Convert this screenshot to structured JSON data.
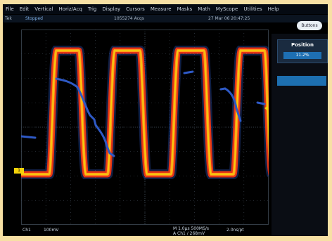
{
  "menu": [
    "File",
    "Edit",
    "Vertical",
    "Horiz/Acq",
    "Trig",
    "Display",
    "Cursors",
    "Measure",
    "Masks",
    "Math",
    "MyScope",
    "Utilities",
    "Help"
  ],
  "status": {
    "brand": "Tek",
    "state": "Stopped",
    "acqs": "1055274 Acqs",
    "datetime": "27 Mar 06 20:47:25"
  },
  "buttons_label": "Buttons",
  "side_panel": {
    "title": "Position",
    "value": "11.2%"
  },
  "channel": {
    "marker": "1",
    "label": "Ch1",
    "scale": "100mV"
  },
  "bottom": {
    "timebase": "M 1.0µs 500MS/s",
    "trigger": "A  Ch1  ∕  268mV",
    "zoom": "2.0ns/pt"
  },
  "colors": {
    "grid": "#3f4a56",
    "trace": "#f4d30a",
    "density": "#e63515",
    "persistence": "#2e59c5",
    "panel": "#1e6fb3"
  },
  "icons": {
    "trigger_level": "triangle-left-icon"
  }
}
